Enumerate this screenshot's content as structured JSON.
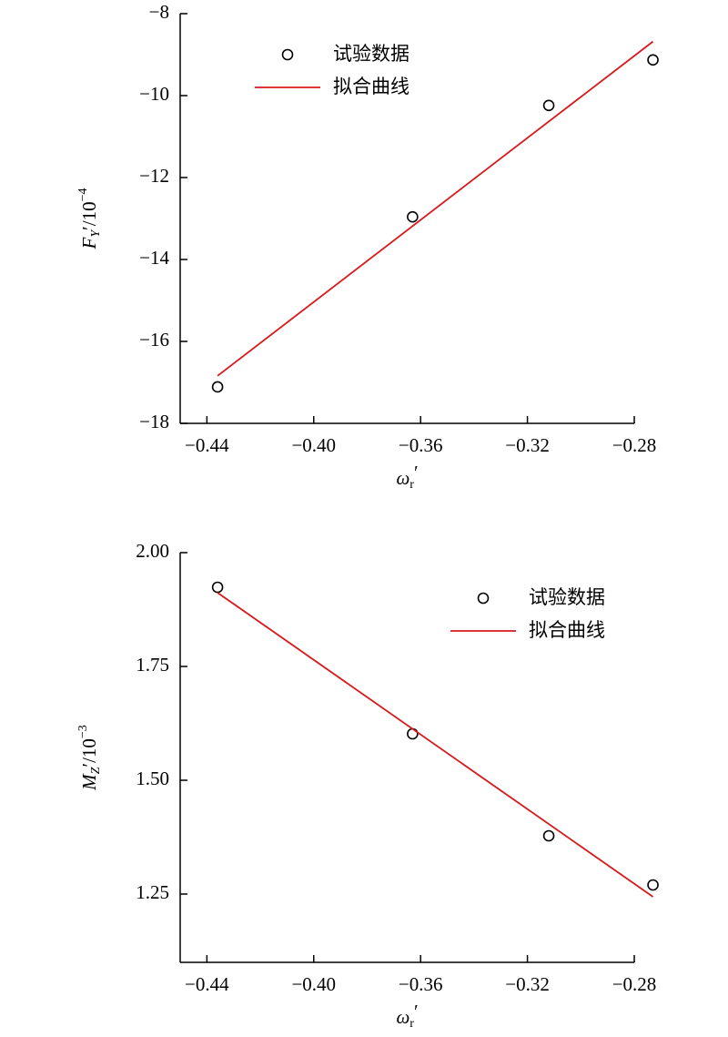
{
  "chart_data": [
    {
      "type": "scatter",
      "xlabel": {
        "main": "ω",
        "sub": "r",
        "rest": "′"
      },
      "ylabel": {
        "main": "F",
        "sub": "Y",
        "rest": "′/10",
        "sup": "−4"
      },
      "xlim": [
        -0.45,
        -0.28
      ],
      "xticks": [
        {
          "value": -0.44,
          "label": "−0.44"
        },
        {
          "value": -0.4,
          "label": "−0.40"
        },
        {
          "value": -0.36,
          "label": "−0.36"
        },
        {
          "value": -0.32,
          "label": "−0.32"
        },
        {
          "value": -0.28,
          "label": "−0.28"
        }
      ],
      "ylim": [
        -18,
        -8
      ],
      "yticks": [
        {
          "value": -18,
          "label": "−18"
        },
        {
          "value": -16,
          "label": "−16"
        },
        {
          "value": -14,
          "label": "−14"
        },
        {
          "value": -12,
          "label": "−12"
        },
        {
          "value": -10,
          "label": "−10"
        },
        {
          "value": -8,
          "label": "−8"
        }
      ],
      "legend": "upper center",
      "series": [
        {
          "name": "试验数据",
          "type": "scatter",
          "color": "#000000",
          "x": [
            -0.436,
            -0.363,
            -0.312,
            -0.273
          ],
          "values": [
            -17.11,
            -12.96,
            -10.24,
            -9.13
          ]
        },
        {
          "name": "拟合曲线",
          "type": "line",
          "color": "#d7191c",
          "x": [
            -0.436,
            -0.273
          ],
          "values": [
            -16.84,
            -8.68
          ]
        }
      ]
    },
    {
      "type": "scatter",
      "xlabel": {
        "main": "ω",
        "sub": "r",
        "rest": "′"
      },
      "ylabel": {
        "main": "M",
        "sub": "Z",
        "rest": "′/10",
        "sup": "−3"
      },
      "xlim": [
        -0.45,
        -0.28
      ],
      "xticks": [
        {
          "value": -0.44,
          "label": "−0.44"
        },
        {
          "value": -0.4,
          "label": "−0.40"
        },
        {
          "value": -0.36,
          "label": "−0.36"
        },
        {
          "value": -0.32,
          "label": "−0.32"
        },
        {
          "value": -0.28,
          "label": "−0.28"
        }
      ],
      "ylim": [
        1.1,
        2.0
      ],
      "yticks": [
        {
          "value": 1.25,
          "label": "1.25"
        },
        {
          "value": 1.5,
          "label": "1.50"
        },
        {
          "value": 1.75,
          "label": "1.75"
        },
        {
          "value": 2.0,
          "label": "2.00"
        }
      ],
      "legend": "upper right",
      "series": [
        {
          "name": "试验数据",
          "type": "scatter",
          "color": "#000000",
          "x": [
            -0.436,
            -0.363,
            -0.312,
            -0.273
          ],
          "values": [
            1.924,
            1.602,
            1.378,
            1.27
          ]
        },
        {
          "name": "拟合曲线",
          "type": "line",
          "color": "#d7191c",
          "x": [
            -0.436,
            -0.273
          ],
          "values": [
            1.912,
            1.244
          ]
        }
      ]
    }
  ]
}
